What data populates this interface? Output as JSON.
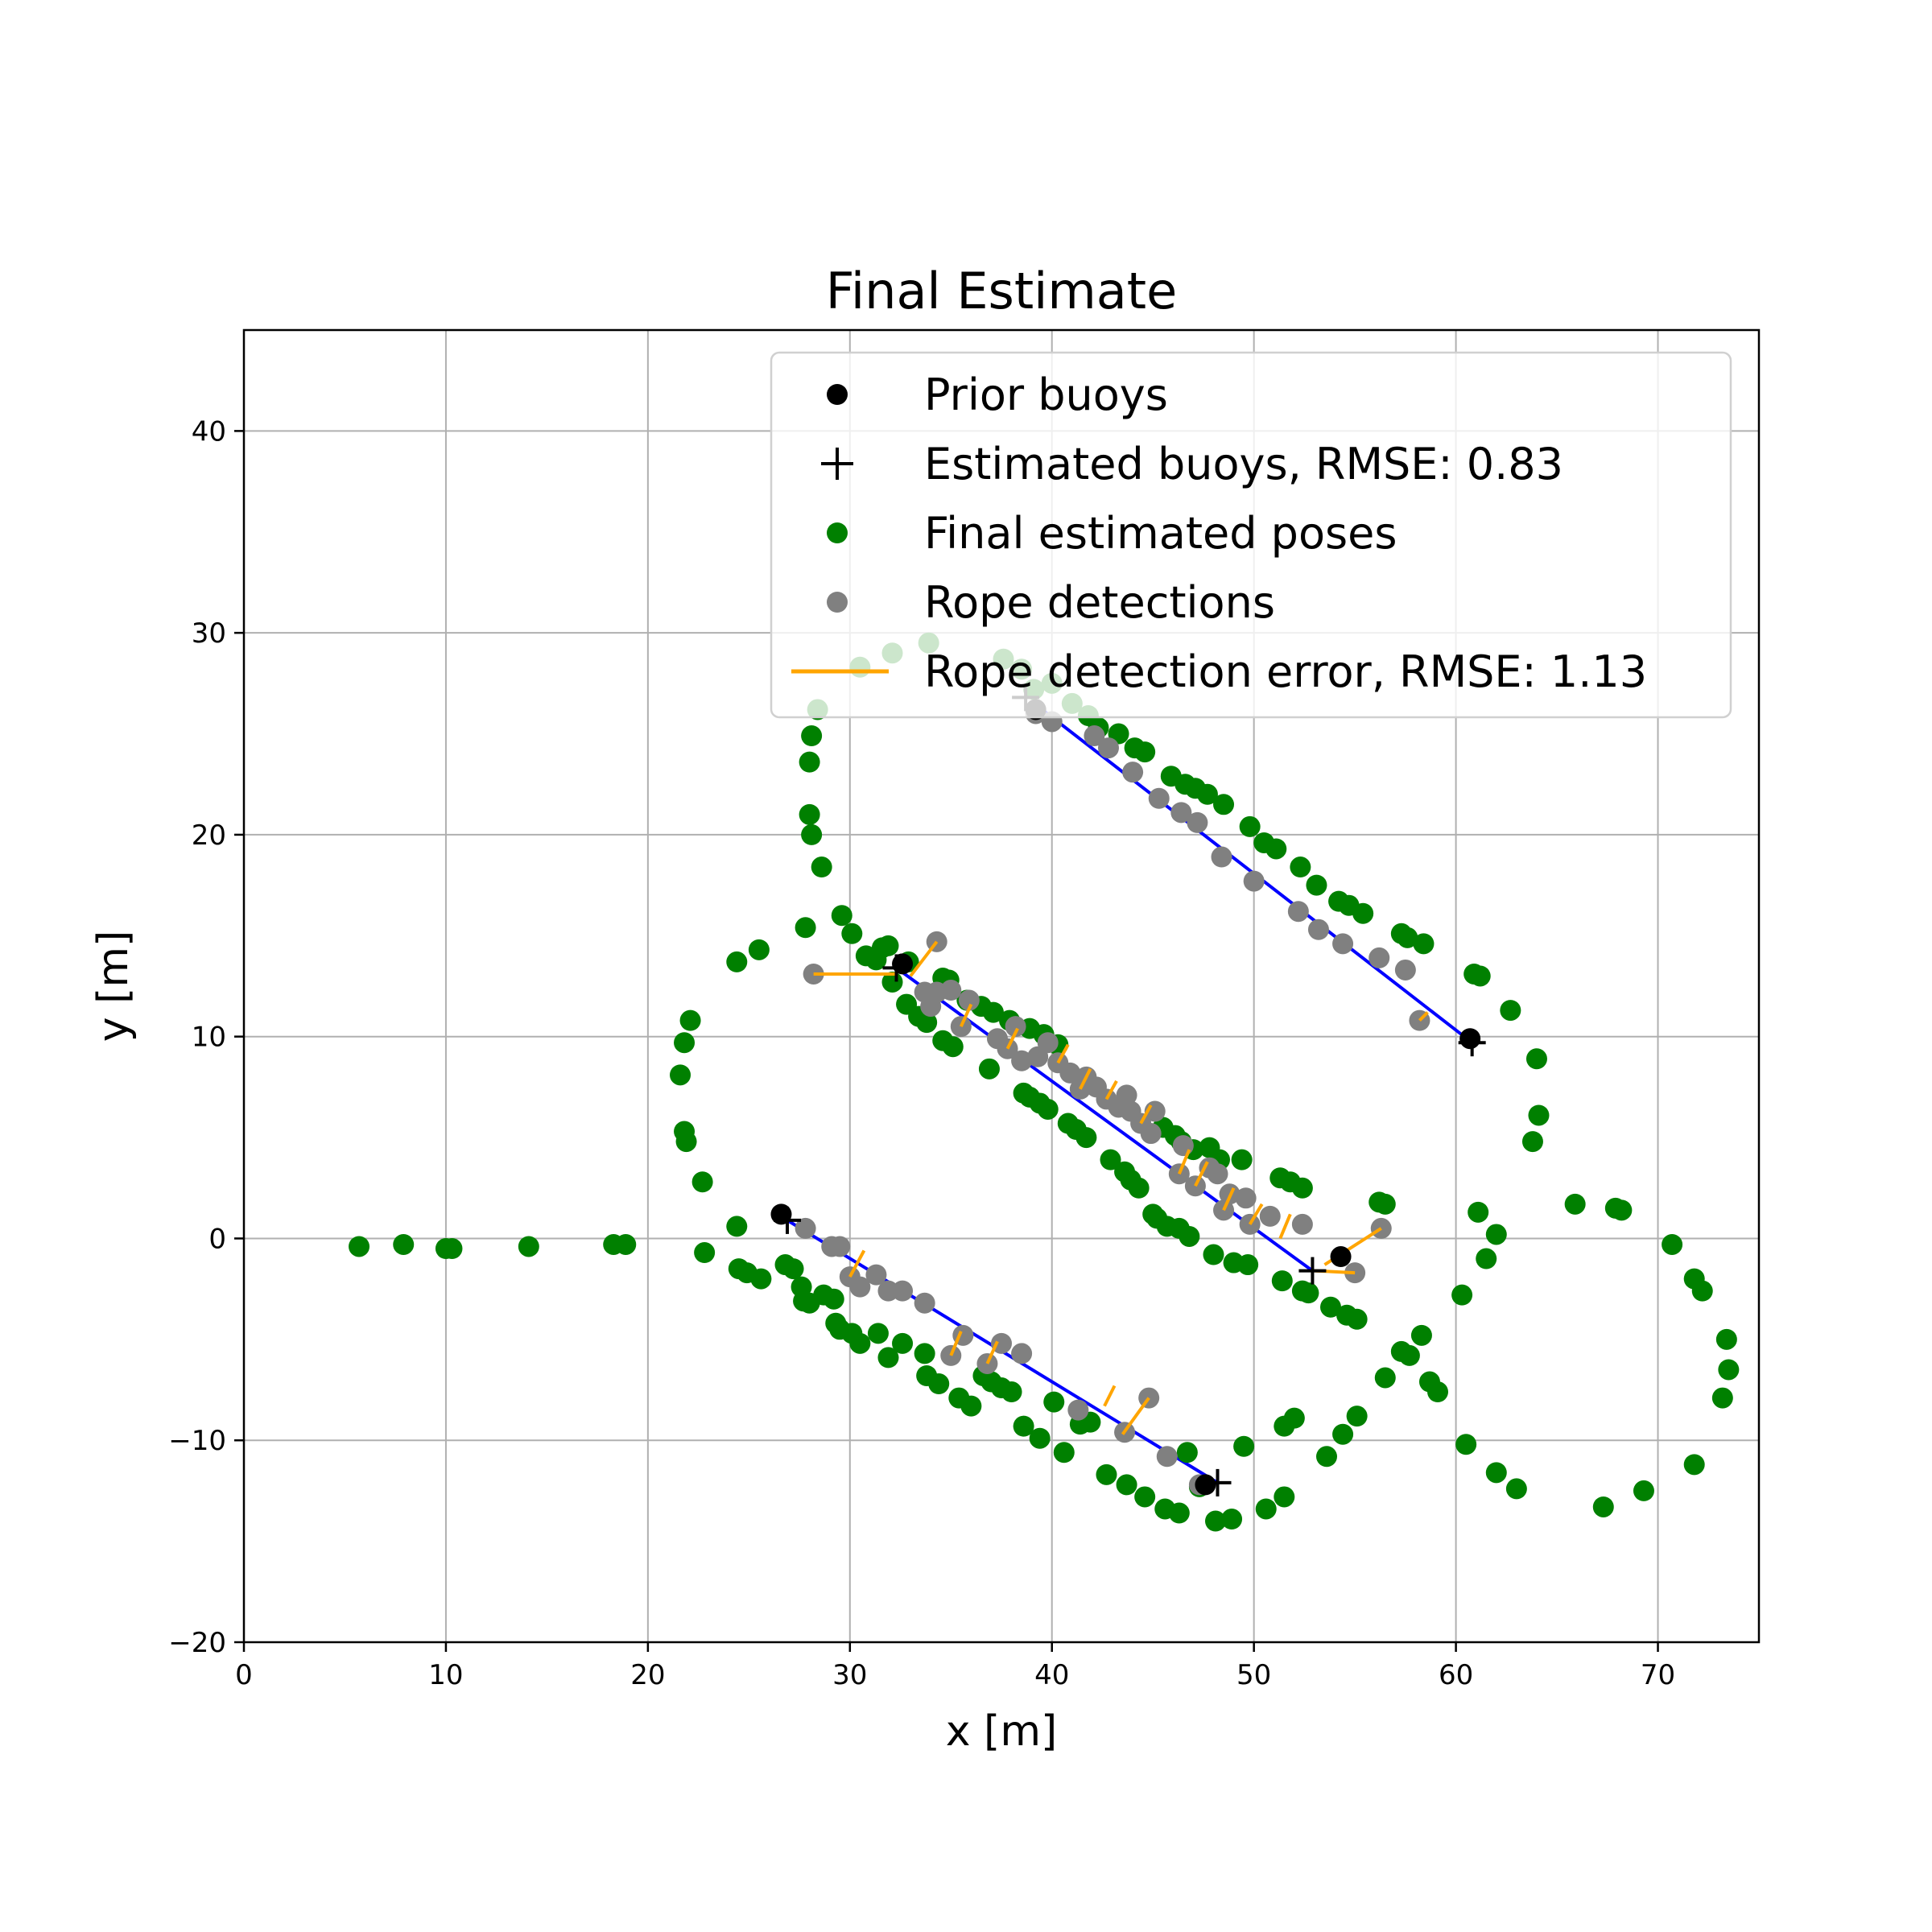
{
  "chart_data": {
    "type": "scatter",
    "title": "Final Estimate",
    "xlabel": "x [m]",
    "ylabel": "y [m]",
    "xlim": [
      0,
      75
    ],
    "ylim": [
      -20,
      45
    ],
    "xticks": [
      0,
      10,
      20,
      30,
      40,
      50,
      60,
      70
    ],
    "yticks": [
      -20,
      -10,
      0,
      10,
      20,
      30,
      40
    ],
    "grid": true,
    "legend_position": "top-right",
    "colors": {
      "prior_buoys": "#000000",
      "estimated_buoys": "#000000",
      "poses": "#008000",
      "detections": "#808080",
      "error": "#ffa500",
      "rope": "#0000ff"
    },
    "legend": [
      {
        "label": "Prior buoys",
        "marker": "dot",
        "color": "#000000"
      },
      {
        "label": "Estimated buoys, RMSE: 0.83",
        "marker": "plus",
        "color": "#000000"
      },
      {
        "label": "Final estimated poses",
        "marker": "dot",
        "color": "#008000"
      },
      {
        "label": "Rope detections",
        "marker": "dot",
        "color": "#808080"
      },
      {
        "label": "Rope detection error, RMSE: 1.13",
        "marker": "line",
        "color": "#ffa500"
      }
    ],
    "prior_buoys": [
      [
        26.6,
        1.2
      ],
      [
        39.2,
        26.2
      ],
      [
        32.6,
        13.6
      ],
      [
        54.3,
        -0.9
      ],
      [
        60.7,
        9.9
      ],
      [
        47.6,
        -12.2
      ]
    ],
    "estimated_buoys": [
      [
        26.9,
        0.9
      ],
      [
        38.7,
        26.8
      ],
      [
        32.3,
        13.4
      ],
      [
        52.9,
        -1.6
      ],
      [
        60.8,
        9.7
      ],
      [
        48.2,
        -12.1
      ]
    ],
    "rope_segments": [
      [
        [
          39.0,
          26.6
        ],
        [
          60.8,
          9.7
        ]
      ],
      [
        [
          32.3,
          13.4
        ],
        [
          52.9,
          -1.6
        ]
      ],
      [
        [
          26.9,
          0.9
        ],
        [
          48.2,
          -12.1
        ]
      ]
    ],
    "poses": [
      [
        5.7,
        -0.4
      ],
      [
        7.9,
        -0.3
      ],
      [
        10.0,
        -0.5
      ],
      [
        10.3,
        -0.5
      ],
      [
        14.1,
        -0.4
      ],
      [
        18.3,
        -0.3
      ],
      [
        18.9,
        -0.3
      ],
      [
        21.6,
        8.1
      ],
      [
        21.8,
        9.7
      ],
      [
        22.1,
        10.8
      ],
      [
        21.8,
        5.3
      ],
      [
        21.9,
        4.8
      ],
      [
        22.7,
        2.8
      ],
      [
        24.4,
        13.7
      ],
      [
        25.5,
        14.3
      ],
      [
        27.8,
        15.4
      ],
      [
        28.6,
        18.4
      ],
      [
        28.1,
        20.0
      ],
      [
        28.0,
        21.0
      ],
      [
        28.0,
        23.6
      ],
      [
        28.1,
        24.9
      ],
      [
        28.4,
        26.2
      ],
      [
        30.5,
        28.3
      ],
      [
        32.1,
        29.0
      ],
      [
        33.9,
        29.5
      ],
      [
        24.4,
        0.6
      ],
      [
        22.8,
        -0.7
      ],
      [
        24.5,
        -1.5
      ],
      [
        24.9,
        -1.7
      ],
      [
        25.6,
        -2.0
      ],
      [
        26.8,
        -1.3
      ],
      [
        27.2,
        -1.5
      ],
      [
        27.6,
        -2.4
      ],
      [
        27.7,
        -3.1
      ],
      [
        28.0,
        -3.2
      ],
      [
        28.7,
        -2.8
      ],
      [
        29.2,
        -3.0
      ],
      [
        29.3,
        -4.2
      ],
      [
        29.5,
        -4.5
      ],
      [
        30.1,
        -4.7
      ],
      [
        30.5,
        -5.2
      ],
      [
        31.4,
        -4.7
      ],
      [
        31.9,
        -5.9
      ],
      [
        32.6,
        -5.2
      ],
      [
        33.7,
        -5.7
      ],
      [
        33.8,
        -6.8
      ],
      [
        34.4,
        -7.2
      ],
      [
        35.4,
        -7.9
      ],
      [
        36.0,
        -8.3
      ],
      [
        36.6,
        -6.8
      ],
      [
        37.0,
        -7.1
      ],
      [
        37.5,
        -7.4
      ],
      [
        38.0,
        -7.6
      ],
      [
        38.6,
        -9.3
      ],
      [
        39.4,
        -9.9
      ],
      [
        40.1,
        -8.1
      ],
      [
        40.6,
        -10.6
      ],
      [
        41.4,
        -9.2
      ],
      [
        41.9,
        -9.1
      ],
      [
        42.7,
        -11.7
      ],
      [
        43.7,
        -12.2
      ],
      [
        44.6,
        -12.8
      ],
      [
        45.6,
        -13.4
      ],
      [
        46.3,
        -13.6
      ],
      [
        46.7,
        -10.6
      ],
      [
        47.3,
        -12.3
      ],
      [
        48.1,
        -14.0
      ],
      [
        48.9,
        -13.9
      ],
      [
        49.5,
        -10.3
      ],
      [
        50.6,
        -13.4
      ],
      [
        51.5,
        -12.8
      ],
      [
        51.5,
        -9.3
      ],
      [
        52.0,
        -8.9
      ],
      [
        53.6,
        -10.8
      ],
      [
        54.4,
        -9.7
      ],
      [
        55.1,
        -8.8
      ],
      [
        56.5,
        -6.9
      ],
      [
        57.3,
        -5.6
      ],
      [
        57.7,
        -5.8
      ],
      [
        58.3,
        -4.8
      ],
      [
        58.7,
        -7.1
      ],
      [
        59.1,
        -7.6
      ],
      [
        60.3,
        -2.8
      ],
      [
        60.5,
        -10.2
      ],
      [
        61.1,
        1.3
      ],
      [
        61.5,
        -1.0
      ],
      [
        62.0,
        0.2
      ],
      [
        62.0,
        -11.6
      ],
      [
        63.0,
        -12.4
      ],
      [
        63.8,
        4.8
      ],
      [
        64.1,
        6.1
      ],
      [
        64.0,
        8.9
      ],
      [
        62.7,
        11.3
      ],
      [
        60.9,
        13.1
      ],
      [
        61.2,
        13.0
      ],
      [
        65.9,
        1.7
      ],
      [
        67.9,
        1.5
      ],
      [
        68.2,
        1.4
      ],
      [
        70.7,
        -0.3
      ],
      [
        71.8,
        -2.0
      ],
      [
        72.2,
        -2.6
      ],
      [
        73.4,
        -5.0
      ],
      [
        73.5,
        -6.5
      ],
      [
        73.2,
        -7.9
      ],
      [
        71.8,
        -11.2
      ],
      [
        69.3,
        -12.5
      ],
      [
        67.3,
        -13.3
      ],
      [
        29.6,
        16.0
      ],
      [
        30.1,
        15.1
      ],
      [
        30.8,
        14.0
      ],
      [
        31.3,
        13.8
      ],
      [
        31.6,
        14.4
      ],
      [
        31.9,
        14.5
      ],
      [
        32.9,
        13.7
      ],
      [
        32.1,
        12.7
      ],
      [
        32.8,
        11.6
      ],
      [
        33.4,
        11.0
      ],
      [
        33.8,
        10.7
      ],
      [
        34.6,
        9.8
      ],
      [
        35.1,
        9.5
      ],
      [
        34.6,
        12.9
      ],
      [
        34.9,
        12.8
      ],
      [
        35.8,
        11.8
      ],
      [
        36.5,
        11.5
      ],
      [
        37.1,
        11.2
      ],
      [
        37.9,
        10.8
      ],
      [
        38.9,
        10.4
      ],
      [
        39.6,
        10.1
      ],
      [
        40.3,
        9.6
      ],
      [
        36.9,
        8.4
      ],
      [
        38.6,
        7.2
      ],
      [
        38.9,
        7.0
      ],
      [
        39.4,
        6.7
      ],
      [
        39.8,
        6.4
      ],
      [
        40.8,
        5.7
      ],
      [
        41.2,
        5.4
      ],
      [
        41.7,
        5.0
      ],
      [
        42.9,
        3.9
      ],
      [
        43.6,
        3.3
      ],
      [
        43.9,
        2.9
      ],
      [
        44.3,
        2.5
      ],
      [
        45.5,
        5.5
      ],
      [
        46.1,
        5.1
      ],
      [
        46.4,
        4.8
      ],
      [
        47.0,
        4.4
      ],
      [
        47.8,
        4.5
      ],
      [
        48.3,
        3.9
      ],
      [
        49.4,
        3.9
      ],
      [
        51.3,
        3.0
      ],
      [
        51.8,
        2.8
      ],
      [
        52.4,
        2.5
      ],
      [
        45.0,
        1.2
      ],
      [
        45.2,
        1.0
      ],
      [
        45.7,
        0.6
      ],
      [
        46.3,
        0.5
      ],
      [
        46.8,
        0.1
      ],
      [
        48.0,
        -0.8
      ],
      [
        49.0,
        -1.2
      ],
      [
        49.7,
        -1.3
      ],
      [
        51.4,
        -2.1
      ],
      [
        52.4,
        -2.6
      ],
      [
        52.7,
        -2.7
      ],
      [
        53.8,
        -3.4
      ],
      [
        54.6,
        -3.8
      ],
      [
        55.1,
        -4.0
      ],
      [
        56.2,
        1.8
      ],
      [
        56.5,
        1.7
      ],
      [
        40.0,
        27.5
      ],
      [
        41.0,
        26.5
      ],
      [
        41.8,
        25.9
      ],
      [
        42.3,
        25.3
      ],
      [
        43.3,
        25.0
      ],
      [
        44.1,
        24.3
      ],
      [
        44.6,
        24.1
      ],
      [
        45.9,
        22.9
      ],
      [
        46.6,
        22.5
      ],
      [
        47.1,
        22.3
      ],
      [
        47.7,
        22.0
      ],
      [
        48.5,
        21.5
      ],
      [
        49.8,
        20.4
      ],
      [
        50.5,
        19.6
      ],
      [
        51.1,
        19.3
      ],
      [
        52.3,
        18.4
      ],
      [
        53.1,
        17.5
      ],
      [
        54.2,
        16.7
      ],
      [
        54.7,
        16.5
      ],
      [
        55.4,
        16.1
      ],
      [
        57.3,
        15.1
      ],
      [
        57.6,
        14.9
      ],
      [
        58.4,
        14.6
      ],
      [
        37.6,
        28.7
      ],
      [
        38.5,
        28.2
      ],
      [
        39.1,
        27.2
      ]
    ],
    "detections": [
      [
        28.2,
        13.1
      ],
      [
        34.3,
        14.7
      ],
      [
        33.7,
        12.2
      ],
      [
        34.3,
        12.2
      ],
      [
        35.0,
        12.3
      ],
      [
        34.0,
        11.5
      ],
      [
        35.9,
        11.8
      ],
      [
        35.5,
        10.5
      ],
      [
        37.3,
        9.9
      ],
      [
        38.2,
        10.5
      ],
      [
        37.8,
        9.4
      ],
      [
        38.5,
        8.8
      ],
      [
        39.3,
        9.0
      ],
      [
        39.8,
        9.7
      ],
      [
        40.3,
        8.7
      ],
      [
        40.9,
        8.2
      ],
      [
        41.4,
        7.4
      ],
      [
        41.7,
        8.0
      ],
      [
        42.2,
        7.5
      ],
      [
        42.7,
        6.9
      ],
      [
        43.3,
        6.5
      ],
      [
        43.7,
        7.1
      ],
      [
        43.9,
        6.3
      ],
      [
        44.4,
        5.7
      ],
      [
        44.9,
        5.2
      ],
      [
        45.1,
        6.3
      ],
      [
        46.3,
        3.2
      ],
      [
        46.5,
        4.6
      ],
      [
        47.1,
        2.6
      ],
      [
        47.8,
        3.5
      ],
      [
        48.2,
        3.2
      ],
      [
        48.8,
        2.2
      ],
      [
        48.5,
        1.4
      ],
      [
        49.6,
        2.0
      ],
      [
        49.8,
        0.7
      ],
      [
        50.8,
        1.1
      ],
      [
        52.4,
        0.7
      ],
      [
        55.0,
        -1.7
      ],
      [
        56.3,
        0.5
      ],
      [
        39.2,
        26.0
      ],
      [
        40.0,
        25.6
      ],
      [
        42.1,
        24.9
      ],
      [
        42.8,
        24.3
      ],
      [
        44.0,
        23.1
      ],
      [
        45.3,
        21.8
      ],
      [
        46.4,
        21.1
      ],
      [
        47.2,
        20.6
      ],
      [
        48.4,
        18.9
      ],
      [
        50.0,
        17.7
      ],
      [
        52.2,
        16.2
      ],
      [
        53.2,
        15.3
      ],
      [
        54.4,
        14.6
      ],
      [
        56.2,
        13.9
      ],
      [
        57.5,
        13.3
      ],
      [
        58.2,
        10.8
      ],
      [
        27.8,
        0.5
      ],
      [
        29.1,
        -0.4
      ],
      [
        29.5,
        -0.4
      ],
      [
        30.0,
        -1.9
      ],
      [
        30.5,
        -2.4
      ],
      [
        31.3,
        -1.8
      ],
      [
        31.9,
        -2.6
      ],
      [
        32.6,
        -2.6
      ],
      [
        33.7,
        -3.2
      ],
      [
        35.0,
        -5.8
      ],
      [
        35.6,
        -4.8
      ],
      [
        36.8,
        -6.2
      ],
      [
        37.5,
        -5.2
      ],
      [
        38.5,
        -5.7
      ],
      [
        41.3,
        -8.5
      ],
      [
        43.6,
        -9.6
      ],
      [
        44.8,
        -7.9
      ],
      [
        45.7,
        -10.8
      ],
      [
        47.3,
        -12.2
      ]
    ],
    "error_segments": [
      [
        [
          28.2,
          13.1
        ],
        [
          32.3,
          13.1
        ]
      ],
      [
        [
          34.3,
          14.7
        ],
        [
          33.0,
          13.0
        ]
      ],
      [
        [
          55.0,
          -1.7
        ],
        [
          53.0,
          -1.6
        ]
      ],
      [
        [
          56.3,
          0.5
        ],
        [
          53.5,
          -1.3
        ]
      ],
      [
        [
          44.8,
          -7.9
        ],
        [
          43.5,
          -9.7
        ]
      ],
      [
        [
          30.0,
          -1.9
        ],
        [
          30.7,
          -0.6
        ]
      ],
      [
        [
          35.0,
          -5.8
        ],
        [
          35.5,
          -4.6
        ]
      ],
      [
        [
          36.8,
          -6.2
        ],
        [
          37.3,
          -5.1
        ]
      ],
      [
        [
          42.6,
          -8.3
        ],
        [
          43.1,
          -7.3
        ]
      ],
      [
        [
          46.3,
          3.2
        ],
        [
          46.8,
          4.4
        ]
      ],
      [
        [
          47.1,
          2.6
        ],
        [
          47.7,
          3.8
        ]
      ],
      [
        [
          48.5,
          1.4
        ],
        [
          49.0,
          2.5
        ]
      ],
      [
        [
          49.8,
          0.7
        ],
        [
          50.4,
          1.7
        ]
      ],
      [
        [
          51.3,
          0.0
        ],
        [
          51.8,
          1.2
        ]
      ],
      [
        [
          35.5,
          10.5
        ],
        [
          36.0,
          11.6
        ]
      ],
      [
        [
          37.8,
          9.4
        ],
        [
          38.3,
          10.4
        ]
      ],
      [
        [
          40.3,
          8.7
        ],
        [
          40.8,
          9.6
        ]
      ],
      [
        [
          41.4,
          7.4
        ],
        [
          41.9,
          8.4
        ]
      ],
      [
        [
          42.7,
          6.9
        ],
        [
          43.2,
          7.8
        ]
      ],
      [
        [
          44.4,
          5.7
        ],
        [
          44.9,
          6.6
        ]
      ],
      [
        [
          58.2,
          10.8
        ],
        [
          58.6,
          11.2
        ]
      ]
    ]
  }
}
